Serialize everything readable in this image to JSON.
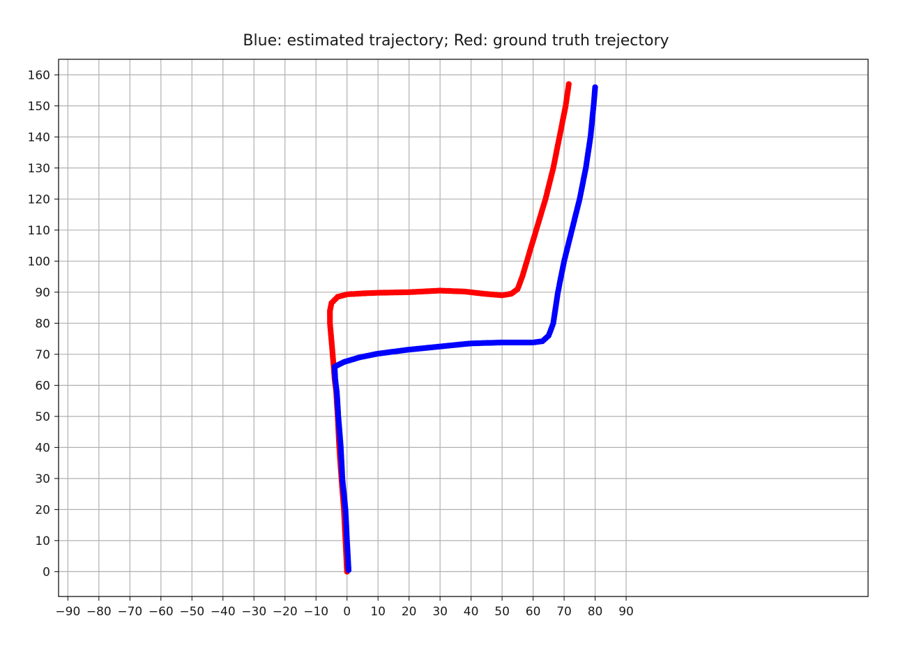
{
  "chart_data": {
    "type": "scatter",
    "title": "Blue: estimated trajectory; Red: ground truth trejectory",
    "xlabel": "",
    "ylabel": "",
    "xlim": [
      -93,
      168
    ],
    "ylim": [
      -8,
      165
    ],
    "grid": true,
    "legend": "none",
    "x_ticks": [
      -90,
      -80,
      -70,
      -60,
      -50,
      -40,
      -30,
      -20,
      -10,
      0,
      10,
      20,
      30,
      40,
      50,
      60,
      70,
      80,
      90
    ],
    "x_tick_labels": [
      "−90",
      "−80",
      "−70",
      "−60",
      "−50",
      "−40",
      "−30",
      "−20",
      "−10",
      "0",
      "10",
      "20",
      "30",
      "40",
      "50",
      "60",
      "70",
      "80",
      "90"
    ],
    "y_ticks": [
      0,
      10,
      20,
      30,
      40,
      50,
      60,
      70,
      80,
      90,
      100,
      110,
      120,
      130,
      140,
      150,
      160
    ],
    "y_tick_labels": [
      "0",
      "10",
      "20",
      "30",
      "40",
      "50",
      "60",
      "70",
      "80",
      "90",
      "100",
      "110",
      "120",
      "130",
      "140",
      "150",
      "160"
    ],
    "series": [
      {
        "color": "#ff0000",
        "points": [
          [
            0,
            0
          ],
          [
            -0.5,
            10
          ],
          [
            -1,
            20
          ],
          [
            -1.8,
            30
          ],
          [
            -2.5,
            40
          ],
          [
            -3,
            50
          ],
          [
            -3.5,
            58
          ],
          [
            -4,
            62
          ],
          [
            -4.3,
            66
          ],
          [
            -4.8,
            72
          ],
          [
            -5.5,
            80
          ],
          [
            -5.5,
            84
          ],
          [
            -5,
            86.5
          ],
          [
            -3,
            88.5
          ],
          [
            0,
            89.3
          ],
          [
            5,
            89.6
          ],
          [
            10,
            89.8
          ],
          [
            20,
            90
          ],
          [
            30,
            90.5
          ],
          [
            38,
            90.2
          ],
          [
            44,
            89.5
          ],
          [
            50,
            89
          ],
          [
            53,
            89.5
          ],
          [
            55,
            91
          ],
          [
            56.5,
            95
          ],
          [
            58,
            100
          ],
          [
            61,
            110
          ],
          [
            64,
            120
          ],
          [
            66.5,
            130
          ],
          [
            68.5,
            140
          ],
          [
            70.5,
            150
          ],
          [
            71.5,
            157
          ]
        ]
      },
      {
        "color": "#0000ff",
        "points": [
          [
            0.5,
            0.5
          ],
          [
            0,
            10
          ],
          [
            -0.5,
            20
          ],
          [
            -1.5,
            30
          ],
          [
            -2,
            40
          ],
          [
            -2.8,
            50
          ],
          [
            -3.3,
            58
          ],
          [
            -3.8,
            62
          ],
          [
            -4,
            66
          ],
          [
            -1,
            67.5
          ],
          [
            4,
            69
          ],
          [
            10,
            70.2
          ],
          [
            20,
            71.5
          ],
          [
            30,
            72.5
          ],
          [
            40,
            73.5
          ],
          [
            50,
            73.8
          ],
          [
            60,
            73.8
          ],
          [
            63,
            74.2
          ],
          [
            65,
            76
          ],
          [
            66.5,
            80
          ],
          [
            68,
            90
          ],
          [
            70,
            100
          ],
          [
            72.5,
            110
          ],
          [
            75,
            120
          ],
          [
            77,
            130
          ],
          [
            78.5,
            140
          ],
          [
            79.5,
            150
          ],
          [
            80,
            156
          ]
        ]
      }
    ]
  }
}
